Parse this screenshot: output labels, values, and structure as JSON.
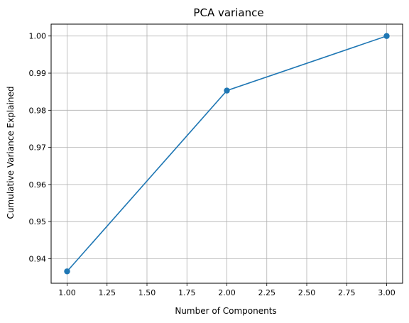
{
  "chart_data": {
    "type": "line",
    "title": "PCA variance",
    "xlabel": "Number of Components",
    "ylabel": "Cumulative Variance Explained",
    "x": [
      1,
      2,
      3
    ],
    "series": [
      {
        "values": [
          0.9366,
          0.9853,
          1.0
        ],
        "color": "#1f77b4",
        "marker": "circle"
      }
    ],
    "xlim": [
      0.9,
      3.1
    ],
    "ylim": [
      0.9334,
      1.0032
    ],
    "xticks": [
      1.0,
      1.25,
      1.5,
      1.75,
      2.0,
      2.25,
      2.5,
      2.75,
      3.0
    ],
    "xtick_labels": [
      "1.00",
      "1.25",
      "1.50",
      "1.75",
      "2.00",
      "2.25",
      "2.50",
      "2.75",
      "3.00"
    ],
    "yticks": [
      0.94,
      0.95,
      0.96,
      0.97,
      0.98,
      0.99,
      1.0
    ],
    "ytick_labels": [
      "0.94",
      "0.95",
      "0.96",
      "0.97",
      "0.98",
      "0.99",
      "1.00"
    ],
    "grid": true,
    "legend": "none"
  }
}
